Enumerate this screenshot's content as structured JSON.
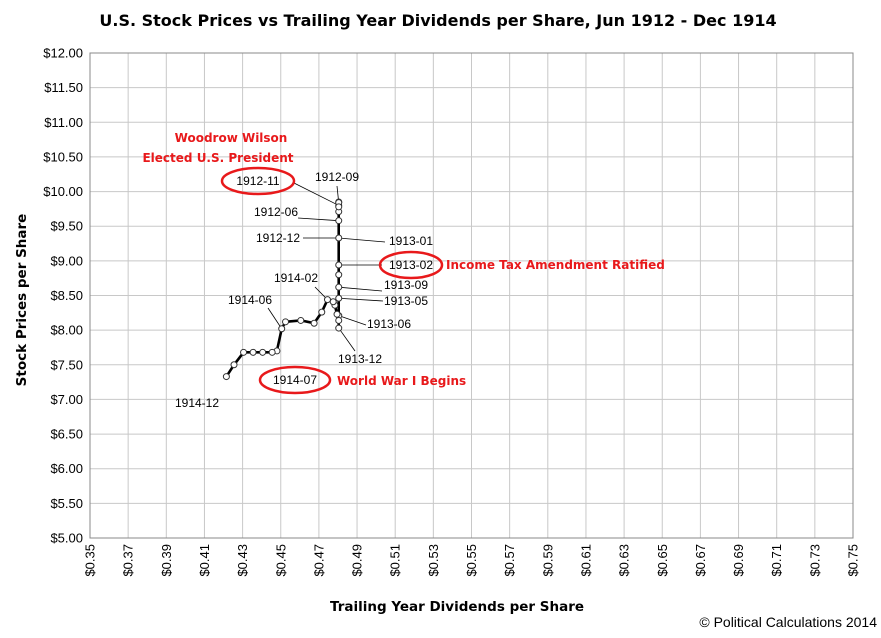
{
  "chart_data": {
    "type": "line",
    "title": "U.S. Stock Prices vs Trailing Year Dividends per Share, Jun 1912 - Dec 1914",
    "xlabel": "Trailing Year Dividends per Share",
    "ylabel": "Stock Prices per Share",
    "xlim": [
      0.35,
      0.75
    ],
    "ylim": [
      5.0,
      12.0
    ],
    "x_ticks": [
      "$0.35",
      "$0.37",
      "$0.39",
      "$0.41",
      "$0.43",
      "$0.45",
      "$0.47",
      "$0.49",
      "$0.51",
      "$0.53",
      "$0.55",
      "$0.57",
      "$0.59",
      "$0.61",
      "$0.63",
      "$0.65",
      "$0.67",
      "$0.69",
      "$0.71",
      "$0.73",
      "$0.75"
    ],
    "y_ticks": [
      "$5.00",
      "$5.50",
      "$6.00",
      "$6.50",
      "$7.00",
      "$7.50",
      "$8.00",
      "$8.50",
      "$9.00",
      "$9.50",
      "$10.00",
      "$10.50",
      "$11.00",
      "$11.50",
      "$12.00"
    ],
    "grid": true,
    "series": [
      {
        "points": [
          {
            "x": 0.4804,
            "y": 9.58
          },
          {
            "x": 0.4804,
            "y": 9.71
          },
          {
            "x": 0.4804,
            "y": 9.85
          },
          {
            "x": 0.4804,
            "y": 9.8
          },
          {
            "x": 0.4804,
            "y": 9.84
          },
          {
            "x": 0.4804,
            "y": 9.78
          },
          {
            "x": 0.4804,
            "y": 9.33
          },
          {
            "x": 0.4804,
            "y": 8.94
          },
          {
            "x": 0.4804,
            "y": 8.8
          },
          {
            "x": 0.4804,
            "y": 8.62
          },
          {
            "x": 0.4804,
            "y": 8.46
          },
          {
            "x": 0.4804,
            "y": 8.21
          },
          {
            "x": 0.4804,
            "y": 8.03
          },
          {
            "x": 0.4804,
            "y": 8.14
          },
          {
            "x": 0.4795,
            "y": 8.23
          },
          {
            "x": 0.4784,
            "y": 8.36
          },
          {
            "x": 0.4775,
            "y": 8.41
          },
          {
            "x": 0.4745,
            "y": 8.44
          },
          {
            "x": 0.4715,
            "y": 8.26
          },
          {
            "x": 0.4675,
            "y": 8.1
          },
          {
            "x": 0.4605,
            "y": 8.14
          },
          {
            "x": 0.4525,
            "y": 8.12
          },
          {
            "x": 0.4505,
            "y": 8.02
          },
          {
            "x": 0.448,
            "y": 7.7
          },
          {
            "x": 0.4455,
            "y": 7.68
          },
          {
            "x": 0.4405,
            "y": 7.68
          },
          {
            "x": 0.4355,
            "y": 7.68
          },
          {
            "x": 0.4305,
            "y": 7.68
          },
          {
            "x": 0.4255,
            "y": 7.5
          },
          {
            "x": 0.4215,
            "y": 7.33
          }
        ]
      }
    ],
    "point_labels": [
      {
        "text": "1912-09",
        "x": 0.4804,
        "y": 9.84
      },
      {
        "text": "1912-11",
        "x": 0.4804,
        "y": 9.8
      },
      {
        "text": "1912-06",
        "x": 0.4804,
        "y": 9.58
      },
      {
        "text": "1912-12",
        "x": 0.4804,
        "y": 9.33
      },
      {
        "text": "1913-01",
        "x": 0.4804,
        "y": 9.33
      },
      {
        "text": "1913-02",
        "x": 0.4804,
        "y": 8.94
      },
      {
        "text": "1913-09",
        "x": 0.4804,
        "y": 8.62
      },
      {
        "text": "1913-05",
        "x": 0.4804,
        "y": 8.46
      },
      {
        "text": "1913-06",
        "x": 0.4804,
        "y": 8.21
      },
      {
        "text": "1913-12",
        "x": 0.4804,
        "y": 8.03
      },
      {
        "text": "1914-02",
        "x": 0.4745,
        "y": 8.44
      },
      {
        "text": "1914-06",
        "x": 0.4505,
        "y": 8.02
      },
      {
        "text": "1914-07",
        "x": 0.448,
        "y": 7.7
      },
      {
        "text": "1914-12",
        "x": 0.4215,
        "y": 7.33
      }
    ],
    "annotations": {
      "wilson_line1": "Woodrow Wilson",
      "wilson_line2": "Elected U.S. President",
      "income_tax": "Income Tax Amendment Ratified",
      "wwi": "World War I Begins"
    },
    "credit": "© Political Calculations 2014",
    "colors": {
      "line": "#000000",
      "marker_fill": "#ffffff",
      "annotation": "#e8191b",
      "grid": "#c8c8c8"
    }
  }
}
